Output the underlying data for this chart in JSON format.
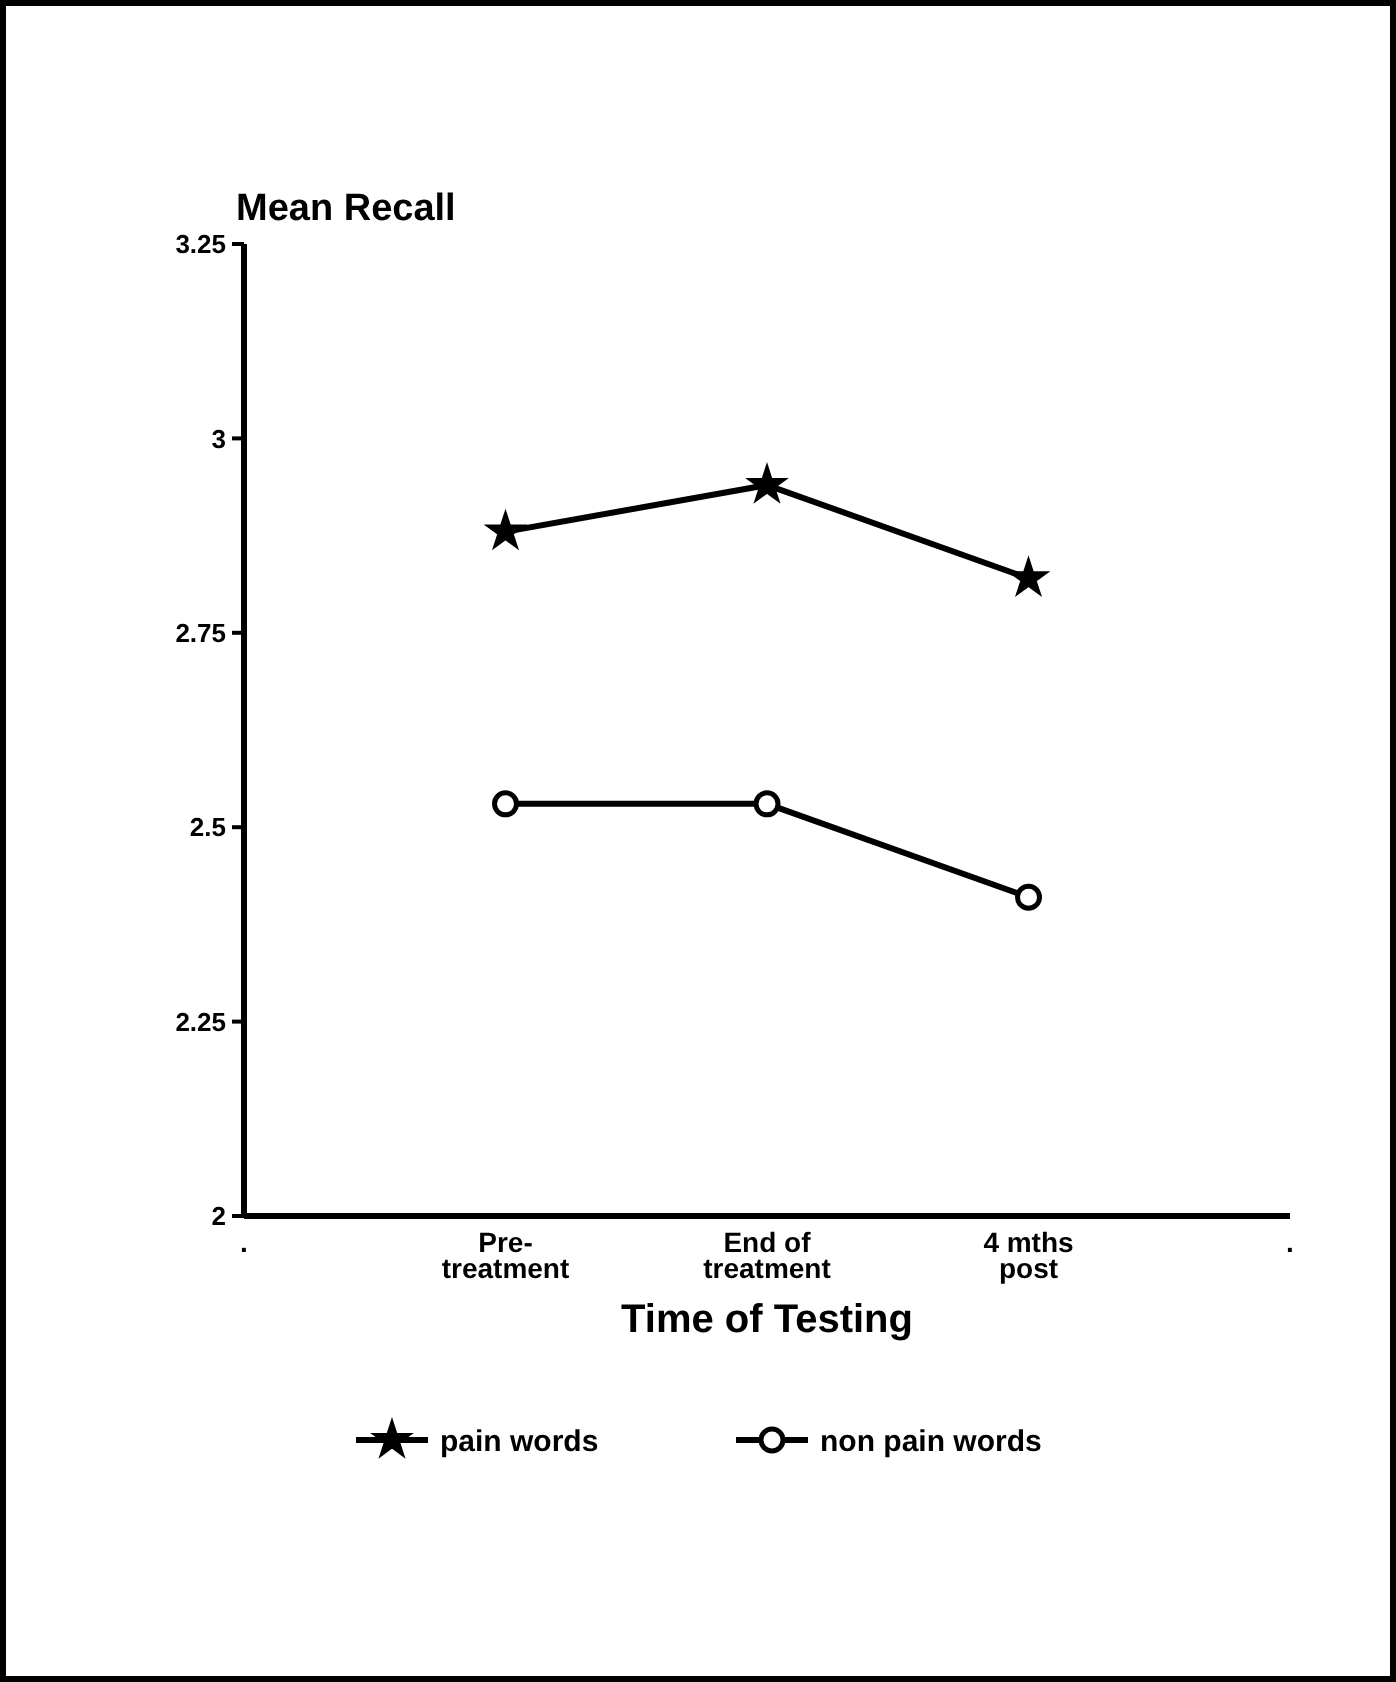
{
  "chart_data": {
    "type": "line",
    "ylabel": "Mean Recall",
    "xlabel": "Time of Testing",
    "categories": [
      ".",
      "Pre-\ntreatment",
      "End of\ntreatment",
      "4 mths\npost",
      "."
    ],
    "series": [
      {
        "name": "pain words",
        "color": "#000000",
        "marker": "star",
        "values": [
          null,
          2.88,
          2.94,
          2.82,
          null
        ]
      },
      {
        "name": "non pain words",
        "color": "#000000",
        "marker": "circle",
        "values": [
          null,
          2.53,
          2.53,
          2.41,
          null
        ]
      }
    ],
    "ylim": [
      2,
      3.25
    ],
    "yticks": [
      2,
      2.25,
      2.5,
      2.75,
      3,
      3.25
    ],
    "grid": false,
    "legend": "bottom",
    "line_style": "solid"
  }
}
